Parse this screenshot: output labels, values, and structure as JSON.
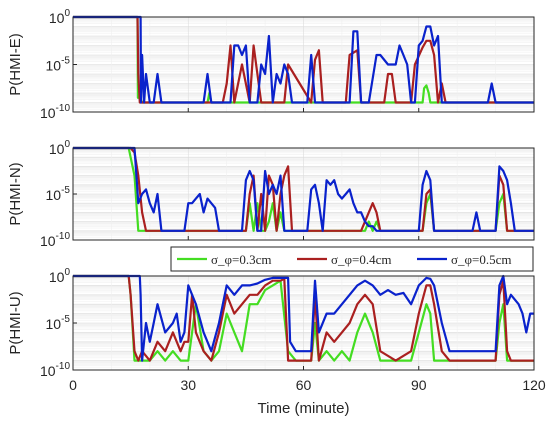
{
  "chart_data": [
    {
      "type": "line",
      "ylabel": "P(HMI-E)",
      "xlim": [
        0,
        120
      ],
      "ylim_log10": [
        -10,
        0
      ],
      "yticks": [
        "10^0",
        "10^-5",
        "10^-10"
      ],
      "series": [
        {
          "color": "#44dd22",
          "x": [
            0,
            16.8,
            16.9,
            17.5,
            18,
            30,
            35,
            35.5,
            36,
            60,
            91,
            91.4,
            92,
            92.6,
            93,
            120
          ],
          "log10": [
            0,
            0,
            -8.5,
            -8.5,
            -9,
            -9,
            -9,
            -8,
            -9,
            -9,
            -9,
            -7.5,
            -7.2,
            -8,
            -9,
            -9
          ]
        },
        {
          "color": "#aa2020",
          "x": [
            0,
            16.8,
            17,
            17.4,
            18,
            39,
            40,
            41,
            42,
            44,
            46,
            47,
            48,
            49,
            55,
            56,
            62,
            63,
            64,
            65,
            71,
            72,
            74,
            75,
            81,
            82,
            83,
            84,
            88,
            89,
            91,
            92,
            93,
            94,
            95,
            96,
            97,
            119,
            120
          ],
          "log10": [
            0,
            0,
            -6,
            -9,
            -9,
            -9,
            -7,
            -3,
            -9,
            -5,
            -9,
            -3,
            -6,
            -9,
            -9,
            -5,
            -9,
            -4.5,
            -3.5,
            -9,
            -9,
            -4,
            -3.5,
            -9,
            -9,
            -6,
            -6,
            -9,
            -9,
            -5,
            -3.2,
            -2.5,
            -2.5,
            -4,
            -9,
            -7,
            -9,
            -9,
            -9
          ]
        },
        {
          "color": "#0a22cc",
          "x": [
            0,
            17.6,
            17.7,
            18,
            18.5,
            19,
            20,
            21,
            22,
            23,
            24,
            26,
            34,
            35,
            36,
            37,
            41,
            42,
            43,
            44,
            45,
            46,
            48,
            49,
            50,
            51,
            52,
            53,
            54,
            55,
            56,
            57,
            58,
            61,
            62,
            63,
            64,
            65,
            66,
            67,
            68,
            69,
            70,
            71,
            72,
            73,
            74,
            75,
            76,
            77,
            79,
            80,
            82,
            84,
            85,
            86,
            87,
            88,
            89,
            90,
            91,
            92,
            93,
            94,
            95,
            96,
            97,
            98,
            99,
            100,
            101,
            102,
            103,
            104,
            105,
            106,
            107,
            108,
            109,
            110,
            111,
            112,
            114,
            116,
            118,
            119,
            120
          ],
          "log10": [
            0,
            0,
            -9,
            -4,
            -9,
            -6,
            -9,
            -9,
            -6,
            -9,
            -9,
            -9,
            -9,
            -6,
            -9,
            -9,
            -9,
            -3,
            -3,
            -4,
            -3,
            -9,
            -9,
            -5,
            -6,
            -2,
            -9,
            -6,
            -7,
            -5,
            -6,
            -9,
            -9,
            -9,
            -4,
            -9,
            -9,
            -9,
            -9,
            -9,
            -9,
            -9,
            -9,
            -9,
            -9,
            -1.5,
            -1.5,
            -9,
            -9,
            -9,
            -4,
            -4,
            -5,
            -5,
            -3,
            -4,
            -5,
            -9,
            -9,
            -3,
            -2.5,
            -1,
            -1,
            -3,
            -2,
            -9,
            -9,
            -9,
            -9,
            -9,
            -9,
            -9,
            -9,
            -9,
            -9,
            -9,
            -9,
            -9,
            -7,
            -9,
            -9,
            -9,
            -9,
            -9,
            -9,
            -9,
            -9
          ]
        }
      ]
    },
    {
      "type": "line",
      "ylabel": "P(HMI-N)",
      "xlim": [
        0,
        120
      ],
      "ylim_log10": [
        -10,
        0
      ],
      "yticks": [
        "10^0",
        "10^-5",
        "10^-10"
      ],
      "series": [
        {
          "color": "#44dd22",
          "x": [
            0,
            14.5,
            15,
            16,
            17,
            18,
            20,
            45,
            46,
            47,
            48,
            49,
            50,
            51,
            52,
            53,
            54,
            55,
            75,
            76,
            77,
            78,
            79,
            80,
            91,
            92,
            93,
            94,
            110,
            111,
            112,
            113,
            120
          ],
          "log10": [
            0,
            0,
            -1,
            -3,
            -9,
            -9,
            -9,
            -9,
            -6,
            -9,
            -6,
            -9,
            -9,
            -8,
            -6,
            -9,
            -7,
            -9,
            -9,
            -9,
            -8,
            -9,
            -8,
            -9,
            -9,
            -6,
            -5,
            -9,
            -9,
            -6,
            -5,
            -9,
            -9
          ]
        },
        {
          "color": "#aa2020",
          "x": [
            0,
            15,
            16,
            17,
            18,
            19,
            20,
            45,
            46,
            47,
            48,
            49,
            50,
            51,
            52,
            53,
            54,
            55,
            56,
            57,
            75,
            76,
            77,
            78,
            79,
            80,
            81,
            91,
            92,
            93,
            94,
            110,
            111,
            112,
            113,
            120
          ],
          "log10": [
            0,
            0,
            -0.5,
            -3,
            -7,
            -9,
            -9,
            -9,
            -5,
            -3,
            -9,
            -5,
            -9,
            -3,
            -4,
            -9,
            -5,
            -3,
            -2,
            -9,
            -9,
            -8,
            -7,
            -6,
            -7,
            -9,
            -9,
            -9,
            -5,
            -4.5,
            -9,
            -9,
            -3,
            -4,
            -9,
            -9
          ]
        },
        {
          "color": "#0a22cc",
          "x": [
            0,
            16,
            17,
            18,
            19,
            20,
            21,
            22,
            23,
            24,
            26,
            28,
            29,
            30,
            31,
            32,
            33,
            34,
            35,
            36,
            37,
            38,
            39,
            40,
            41,
            42,
            43,
            44,
            45,
            46,
            47,
            48,
            49,
            50,
            51,
            52,
            53,
            54,
            55,
            56,
            57,
            58,
            60,
            61,
            62,
            63,
            64,
            65,
            66,
            67,
            68,
            69,
            70,
            71,
            72,
            73,
            74,
            75,
            76,
            77,
            78,
            79,
            80,
            81,
            82,
            83,
            86,
            90,
            91,
            92,
            93,
            94,
            95,
            96,
            100,
            104,
            105,
            106,
            108,
            110,
            111,
            112,
            113,
            114,
            115,
            120
          ],
          "log10": [
            0,
            0,
            -6,
            -5,
            -4.5,
            -6,
            -7,
            -5,
            -9,
            -9,
            -9,
            -9,
            -9,
            -6,
            -6,
            -5.5,
            -5,
            -7,
            -5.5,
            -6,
            -6.5,
            -9,
            -9,
            -9,
            -9,
            -9,
            -9,
            -9,
            -3.5,
            -2.5,
            -3.5,
            -9,
            -9,
            -2.5,
            -5,
            -4,
            -5,
            -3,
            -9,
            -9,
            -9,
            -9,
            -9,
            -9,
            -4.5,
            -4,
            -6,
            -9,
            -3.5,
            -4,
            -3.5,
            -5,
            -5.5,
            -5,
            -4.5,
            -6,
            -7,
            -7,
            -8,
            -8.5,
            -8.5,
            -9,
            -9,
            -9,
            -9,
            -9,
            -9,
            -9,
            -4,
            -2.5,
            -3.5,
            -9,
            -9,
            -9,
            -9,
            -9,
            -7,
            -9,
            -9,
            -9,
            -2,
            -2.5,
            -3.5,
            -6,
            -9,
            -9
          ]
        }
      ]
    },
    {
      "type": "line",
      "ylabel": "P(HMI-U)",
      "xlim": [
        0,
        120
      ],
      "ylim_log10": [
        -10,
        0
      ],
      "yticks": [
        "10^0",
        "10^-5",
        "10^-10"
      ],
      "series": [
        {
          "color": "#44dd22",
          "x": [
            0,
            14.5,
            15,
            16,
            17,
            18,
            20,
            22,
            24,
            26,
            28,
            30,
            31,
            32,
            34,
            36,
            38,
            40,
            42,
            44,
            46,
            48,
            50,
            52,
            54,
            56,
            58,
            60,
            62,
            63,
            64,
            66,
            68,
            70,
            72,
            74,
            76,
            78,
            80,
            84,
            88,
            90,
            92,
            93,
            94,
            96,
            98,
            100,
            102,
            104,
            106,
            108,
            110,
            111,
            112,
            113,
            114,
            116,
            118,
            120
          ],
          "log10": [
            0,
            0,
            -2,
            -9,
            -9,
            -9,
            -9,
            -8,
            -9,
            -8,
            -9,
            -9,
            -6,
            -3,
            -8,
            -9,
            -8,
            -4,
            -6,
            -8,
            -3,
            -3,
            -1.5,
            -1,
            -0.5,
            -8,
            -9,
            -9,
            -9,
            -5,
            -9,
            -8,
            -9,
            -8,
            -9,
            -6,
            -4,
            -6,
            -9,
            -9,
            -9,
            -6,
            -3,
            -4,
            -9,
            -9,
            -9,
            -9,
            -9,
            -9,
            -9,
            -9,
            -9,
            -5,
            -3,
            -9,
            -9,
            -9,
            -9,
            -9
          ]
        },
        {
          "color": "#aa2020",
          "x": [
            0,
            14.5,
            15,
            16,
            17,
            18,
            20,
            22,
            24,
            26,
            28,
            29,
            30,
            31,
            32,
            34,
            36,
            38,
            40,
            42,
            44,
            46,
            48,
            50,
            52,
            54,
            55,
            56,
            58,
            60,
            62,
            63,
            64,
            66,
            68,
            70,
            72,
            74,
            76,
            78,
            80,
            84,
            88,
            90,
            92,
            93,
            94,
            96,
            98,
            100,
            102,
            104,
            106,
            108,
            110,
            111,
            112,
            113,
            114,
            116,
            118,
            120
          ],
          "log10": [
            0,
            0,
            -2,
            -8,
            -9,
            -8,
            -9,
            -7,
            -8,
            -6,
            -8,
            -7,
            -7,
            -2,
            -6,
            -8,
            -9,
            -6,
            -2,
            -4,
            -3,
            -2,
            -2,
            -1,
            -0.5,
            -0.5,
            -0.3,
            -9,
            -9,
            -9,
            -9,
            -2,
            -9,
            -6,
            -7,
            -6,
            -5,
            -3,
            -2,
            -3,
            -8,
            -9,
            -8,
            -4,
            -1,
            -1,
            -3,
            -8,
            -9,
            -9,
            -9,
            -9,
            -9,
            -9,
            -9,
            -2,
            -0.5,
            -8,
            -9,
            -9,
            -9,
            -9
          ]
        },
        {
          "color": "#0a22cc",
          "x": [
            0,
            17.4,
            17.6,
            18,
            19,
            20,
            21,
            22,
            24,
            26,
            27,
            28,
            29,
            30,
            32,
            34,
            36,
            38,
            40,
            42,
            44,
            46,
            48,
            50,
            52,
            54,
            56,
            56.5,
            58,
            60,
            62,
            63,
            64,
            66,
            68,
            70,
            72,
            74,
            76,
            78,
            80,
            82,
            84,
            86,
            88,
            90,
            92,
            93,
            94,
            96,
            98,
            100,
            102,
            104,
            106,
            108,
            110,
            111,
            112,
            113,
            114,
            116,
            117,
            118,
            119,
            120
          ],
          "log10": [
            0,
            0,
            -2,
            -9,
            -5,
            -7,
            -5,
            -3,
            -6,
            -5,
            -4,
            -7,
            -6,
            -1,
            -3,
            -6,
            -8,
            -5,
            -1,
            -2,
            -1,
            -1,
            -0.8,
            -0.4,
            -0.2,
            -0.2,
            -0.2,
            -7,
            -8,
            -8,
            -8,
            -0.5,
            -6,
            -4,
            -4,
            -3,
            -2,
            -1,
            -0.5,
            -1,
            -2,
            -1.5,
            -2,
            -1.8,
            -3,
            -1,
            -0.2,
            -0.3,
            -1,
            -5,
            -8,
            -8,
            -8,
            -8,
            -8,
            -8,
            -8,
            -1,
            0,
            -3,
            -2,
            -3,
            -4,
            -6,
            -4,
            -4
          ]
        }
      ]
    }
  ],
  "legend": [
    {
      "label": "σ_φ=0.3cm",
      "color": "#44dd22"
    },
    {
      "label": "σ_φ=0.4cm",
      "color": "#aa2020"
    },
    {
      "label": "σ_φ=0.5cm",
      "color": "#0a22cc"
    }
  ],
  "xaxis": {
    "label": "Time (minute)",
    "ticks": [
      0,
      30,
      60,
      90,
      120
    ]
  }
}
